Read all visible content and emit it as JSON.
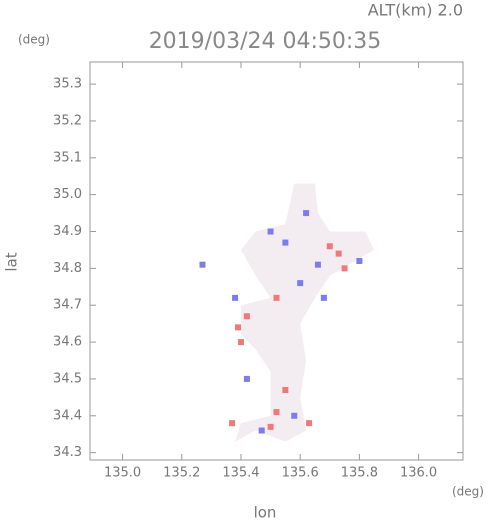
{
  "chart_data": {
    "type": "scatter",
    "title": "2019/03/24 04:50:35",
    "subtitle": "ALT(km) 2.0",
    "y_unit": "(deg)",
    "x_unit": "(deg)",
    "xlabel": "lon",
    "ylabel": "lat",
    "xlim": [
      134.89,
      136.15
    ],
    "ylim": [
      34.28,
      35.36
    ],
    "xticks": [
      {
        "value": 135,
        "label": "135.0"
      },
      135.2,
      135.4,
      135.6,
      135.8,
      {
        "value": 136,
        "label": "136.0"
      }
    ],
    "yticks": [
      34.3,
      34.4,
      34.5,
      34.6,
      34.7,
      34.8,
      34.9,
      {
        "value": 35,
        "label": "35.0"
      },
      35.1,
      35.2,
      35.3
    ],
    "area": {
      "color": "#f3ecf1",
      "x": [
        135.38,
        135.45,
        135.55,
        135.62,
        135.6,
        135.62,
        135.6,
        135.65,
        135.7,
        135.85,
        135.82,
        135.7,
        135.66,
        135.65,
        135.58,
        135.55,
        135.45,
        135.4,
        135.45,
        135.5,
        135.4,
        135.4,
        135.45,
        135.5,
        135.5,
        135.4
      ],
      "y": [
        34.33,
        34.36,
        34.33,
        34.36,
        34.45,
        34.55,
        34.65,
        34.72,
        34.78,
        34.85,
        34.9,
        34.9,
        34.95,
        35.03,
        35.03,
        34.92,
        34.9,
        34.85,
        34.78,
        34.72,
        34.7,
        34.62,
        34.58,
        34.52,
        34.4,
        34.38
      ]
    },
    "series": [
      {
        "color": "#f07878",
        "x": [
          135.37,
          135.42,
          135.39,
          135.52,
          135.5,
          135.63,
          135.7,
          135.75,
          135.52,
          135.73,
          135.55,
          135.4
        ],
        "y": [
          34.38,
          34.67,
          34.64,
          34.72,
          34.37,
          34.38,
          34.86,
          34.8,
          34.41,
          34.84,
          34.47,
          34.6
        ]
      },
      {
        "color": "#7c7cf0",
        "x": [
          135.27,
          135.38,
          135.55,
          135.6,
          135.66,
          135.58,
          135.47,
          135.5,
          135.8,
          135.68,
          135.42,
          135.62
        ],
        "y": [
          34.81,
          34.72,
          34.87,
          34.76,
          34.81,
          34.4,
          34.36,
          34.9,
          34.82,
          34.72,
          34.5,
          34.95
        ]
      }
    ]
  }
}
